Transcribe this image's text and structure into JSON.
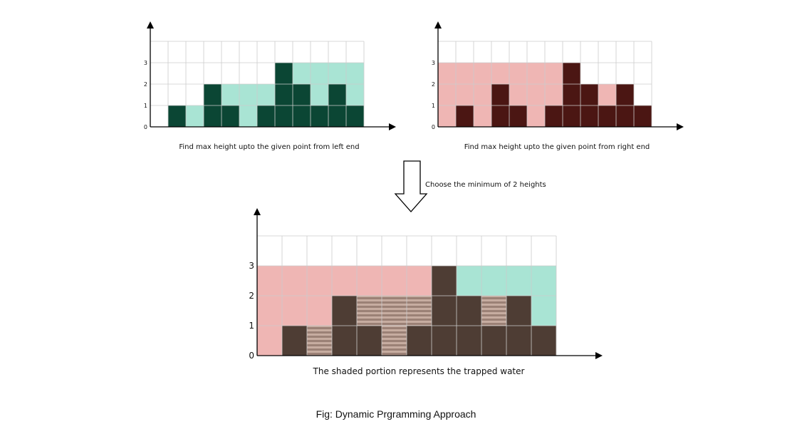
{
  "heights": [
    0,
    1,
    0,
    2,
    1,
    0,
    1,
    3,
    2,
    1,
    2,
    1
  ],
  "left_max": [
    0,
    1,
    1,
    2,
    2,
    2,
    2,
    3,
    3,
    3,
    3,
    3
  ],
  "right_max": [
    3,
    3,
    3,
    3,
    3,
    3,
    3,
    3,
    2,
    2,
    2,
    1
  ],
  "water_level": [
    0,
    1,
    1,
    2,
    2,
    2,
    2,
    3,
    2,
    2,
    2,
    1
  ],
  "y_ticks": [
    "0",
    "1",
    "2",
    "3"
  ],
  "captions": {
    "left_chart": "Find max height upto the given point from left end",
    "right_chart": "Find max height upto the given point from right end",
    "arrow_note": "Choose the minimum of 2 heights",
    "bottom_chart": "The shaded portion represents the trapped water",
    "figure": "Fig: Dynamic Prgramming Approach"
  },
  "colors": {
    "left_bar": "#0b4634",
    "left_fill": "#a9e4d4",
    "right_bar": "#4b1613",
    "right_fill": "#efb6b4",
    "bottom_bar": "#4e3d34",
    "water_stripe_a": "#c6aca0",
    "water_stripe_b": "#9b8176",
    "grid": "#cccccc"
  }
}
